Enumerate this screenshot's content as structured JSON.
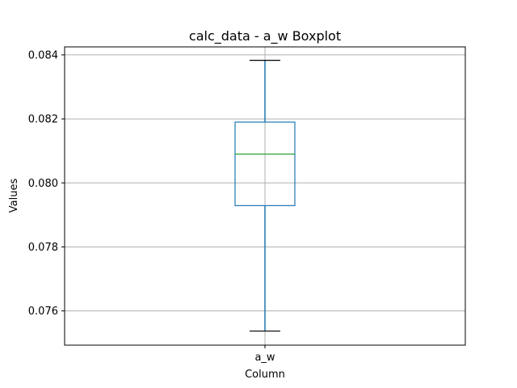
{
  "chart_data": {
    "type": "boxplot",
    "title": "calc_data - a_w Boxplot",
    "xlabel": "Column",
    "ylabel": "Values",
    "categories": [
      "a_w"
    ],
    "ylim": [
      0.07493,
      0.08425
    ],
    "yticks": [
      0.076,
      0.078,
      0.08,
      0.082,
      0.084
    ],
    "ytick_labels": [
      "0.076",
      "0.078",
      "0.080",
      "0.082",
      "0.084"
    ],
    "grid": true,
    "legend": "none",
    "boxes": [
      {
        "category": "a_w",
        "whisker_low": 0.07537,
        "q1": 0.07929,
        "median": 0.0809,
        "q3": 0.0819,
        "whisker_high": 0.08383
      }
    ],
    "colors": {
      "box": "#1f77b4",
      "whisker": "#1f77b4",
      "median": "#2ca02c",
      "caps": "#000000",
      "grid": "#b0b0b0",
      "axes": "#000000"
    }
  }
}
